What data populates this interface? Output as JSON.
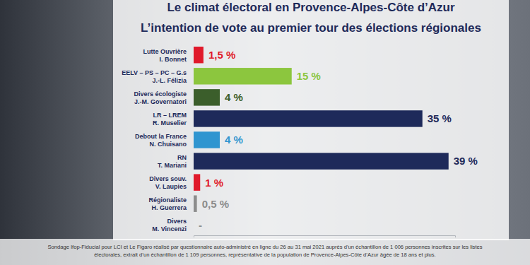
{
  "chart_data": {
    "type": "bar",
    "orientation": "horizontal",
    "title": "Le climat électoral en Provence-Alpes-Côte d’Azur",
    "subtitle": "L’intention de vote au premier tour des élections régionales",
    "categories": [
      "Lutte Ouvrière",
      "EELV – PS – PC – G.s",
      "Divers écologiste",
      "LR – LREM",
      "Debout la France",
      "RN",
      "Divers souv.",
      "Régionaliste",
      "Divers"
    ],
    "candidates": [
      "I. Bonnet",
      "J.-L. Félizia",
      "J.-M. Governatori",
      "R. Muselier",
      "N. Chuisano",
      "T. Mariani",
      "V. Laupies",
      "H. Guerrera",
      "M. Vincenzi"
    ],
    "values": [
      1.5,
      15,
      4,
      35,
      4,
      39,
      1,
      0.5,
      null
    ],
    "value_labels": [
      "1,5 %",
      "15 %",
      "4 %",
      "35 %",
      "4 %",
      "39 %",
      "1 %",
      "0,5 %",
      "-"
    ],
    "colors": [
      "#e0192b",
      "#8cc63e",
      "#3b5e2b",
      "#1e2a5a",
      "#2f95d0",
      "#1e2a5a",
      "#e0192b",
      "#8c8c8c",
      "#8c8c8c"
    ],
    "xlim": [
      0,
      40
    ],
    "tick_labels": false,
    "grid": false,
    "data_labels": true,
    "source": [
      "Sondage Ifop-Fiducial pour LCI et Le Figaro réalisé par questionnaire auto-administré en ligne du 26 au 31 mai 2021 auprès d’un échantillon de 1 006 personnes inscrites sur les listes",
      "électorales, extrait d’un échantillon de 1 109 personnes, représentative de la population de Provence-Alpes-Côte d’Azur âgée de 18 ans et plus."
    ]
  }
}
